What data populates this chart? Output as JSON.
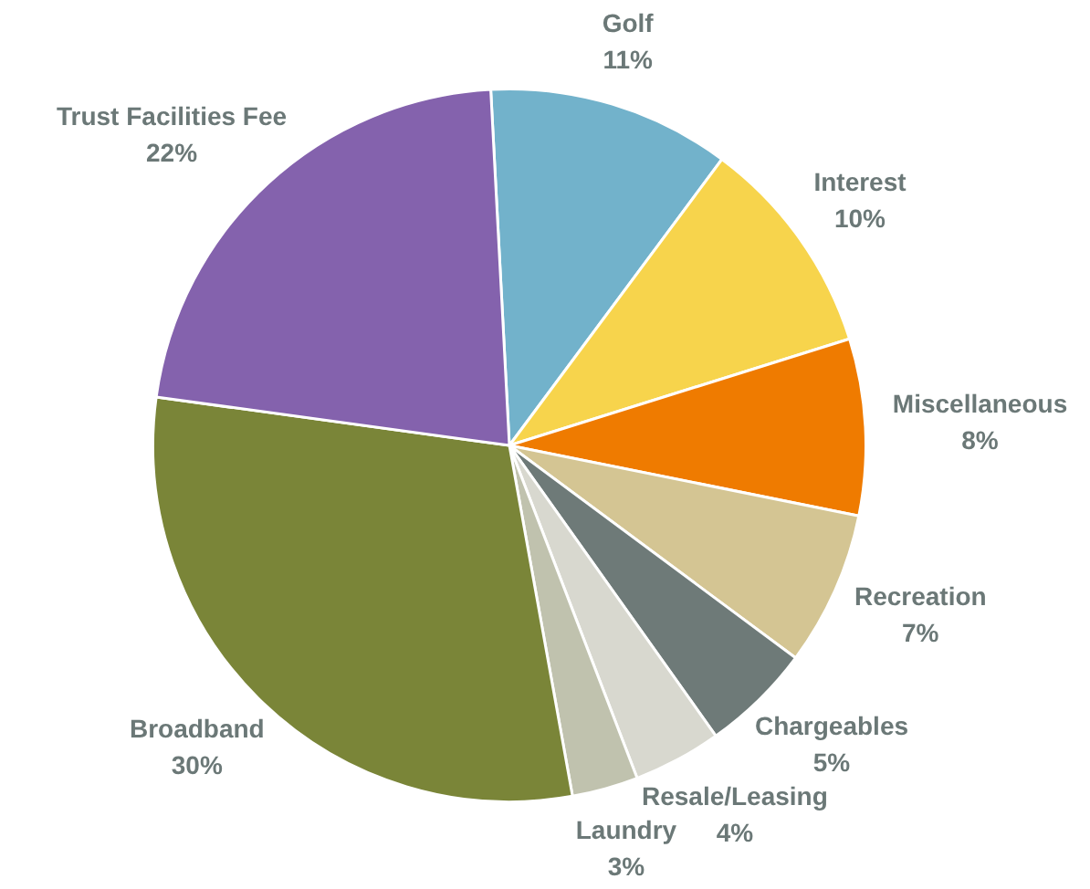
{
  "chart_data": {
    "type": "pie",
    "categories": [
      "Golf",
      "Interest",
      "Miscellaneous",
      "Recreation",
      "Chargeables",
      "Resale/Leasing",
      "Laundry",
      "Broadband",
      "Trust Facilities Fee"
    ],
    "values": [
      11,
      10,
      8,
      7,
      5,
      4,
      3,
      30,
      22
    ],
    "value_labels": [
      "11%",
      "10%",
      "8%",
      "7%",
      "5%",
      "4%",
      "3%",
      "30%",
      "22%"
    ],
    "colors": [
      "#72b2cb",
      "#f7d44c",
      "#ef7b00",
      "#d4c593",
      "#6e7a78",
      "#d8d8cf",
      "#c0c2ae",
      "#7a8538",
      "#8462ad"
    ],
    "legend": false
  }
}
